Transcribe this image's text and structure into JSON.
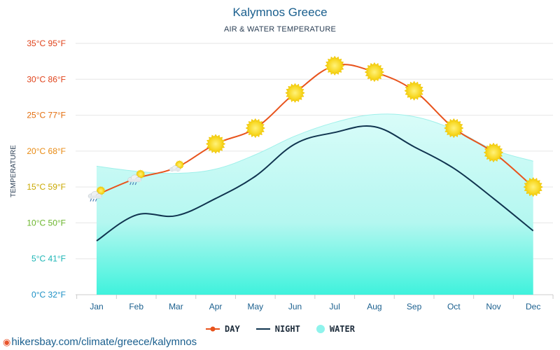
{
  "chart_data": {
    "type": "line",
    "title": "Kalymnos Greece",
    "subtitle": "AIR & WATER TEMPERATURE",
    "ylabel": "TEMPERATURE",
    "categories": [
      "Jan",
      "Feb",
      "Mar",
      "Apr",
      "May",
      "Jun",
      "Jul",
      "Aug",
      "Sep",
      "Oct",
      "Nov",
      "Dec"
    ],
    "ylim": [
      0,
      35
    ],
    "yticks": [
      {
        "value": 35,
        "label": "35°C 95°F",
        "color": "#e0421a"
      },
      {
        "value": 30,
        "label": "30°C 86°F",
        "color": "#e0421a"
      },
      {
        "value": 25,
        "label": "25°C 77°F",
        "color": "#e36c0a"
      },
      {
        "value": 20,
        "label": "20°C 68°F",
        "color": "#e88a12"
      },
      {
        "value": 15,
        "label": "15°C 59°F",
        "color": "#c9a800"
      },
      {
        "value": 10,
        "label": "10°C 50°F",
        "color": "#6ab52a"
      },
      {
        "value": 5,
        "label": "5°C 41°F",
        "color": "#1bb5b5"
      },
      {
        "value": 0,
        "label": "0°C 32°F",
        "color": "#1a8fc4"
      }
    ],
    "series": [
      {
        "name": "DAY",
        "color": "#e8531c",
        "values": [
          13.9,
          16.2,
          17.7,
          21.0,
          23.2,
          28.1,
          31.9,
          31.0,
          28.4,
          23.2,
          19.8,
          15.0
        ]
      },
      {
        "name": "NIGHT",
        "color": "#10344f",
        "values": [
          7.5,
          11.1,
          11.0,
          13.4,
          16.5,
          21.0,
          22.6,
          23.4,
          20.6,
          17.6,
          13.4,
          8.9
        ]
      },
      {
        "name": "WATER",
        "color": "#8ff3ec",
        "values": [
          17.9,
          17.2,
          16.9,
          17.5,
          19.5,
          22.1,
          24.0,
          25.1,
          24.8,
          23.0,
          20.2,
          18.6
        ]
      }
    ],
    "day_icons": [
      "rain-cloud-sun-icon",
      "rain-cloud-sun-icon",
      "cloud-sun-icon",
      "sun-icon",
      "sun-icon",
      "sun-icon",
      "sun-icon",
      "sun-icon",
      "sun-icon",
      "sun-icon",
      "sun-icon",
      "sun-icon"
    ],
    "grid": true,
    "legend": "bottom"
  },
  "footer": {
    "text": "hikersbay.com/climate/greece/kalymnos",
    "pin_icon": "location-pin-icon"
  }
}
